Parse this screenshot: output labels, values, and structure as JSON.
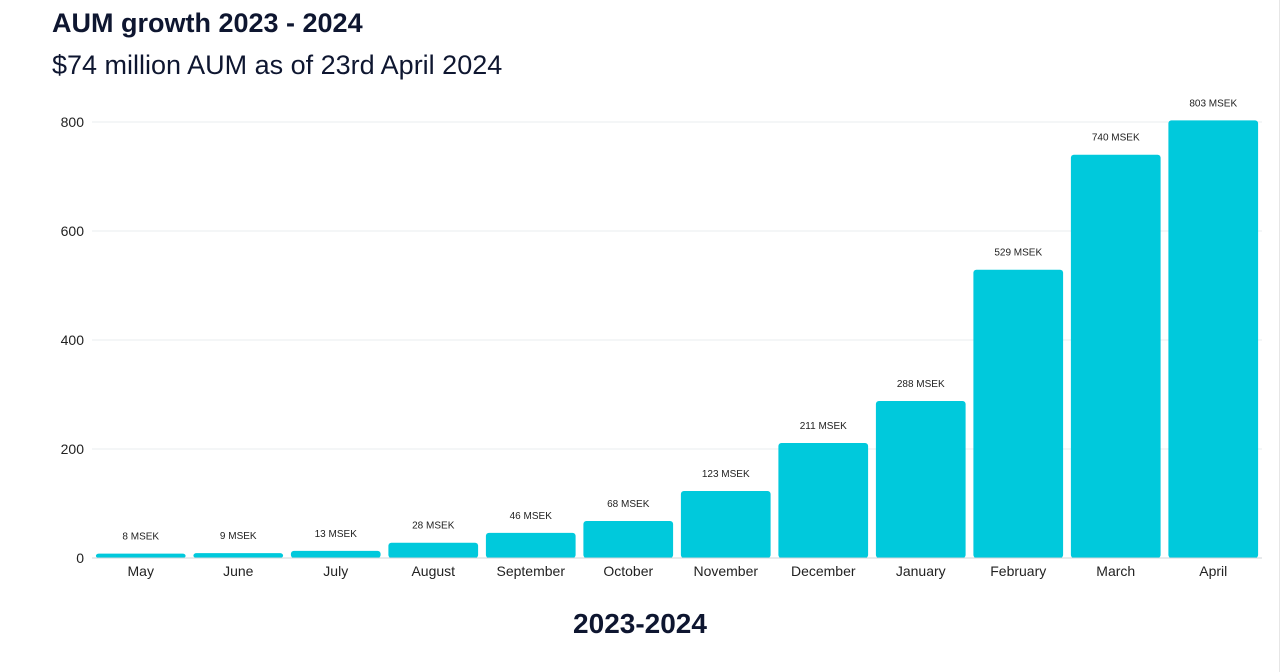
{
  "header": {
    "title": "AUM growth 2023 - 2024",
    "subtitle": "$74 million AUM as of 23rd April 2024"
  },
  "chart_data": {
    "type": "bar",
    "title": "AUM growth 2023 - 2024",
    "subtitle": "$74 million AUM as of 23rd April 2024",
    "xlabel": "2023-2024",
    "ylabel": "",
    "ylim": [
      0,
      800
    ],
    "yticks": [
      0,
      200,
      400,
      600,
      800
    ],
    "grid": true,
    "legend": "none",
    "bar_color": "#00c9dc",
    "categories": [
      "May",
      "June",
      "July",
      "August",
      "September",
      "October",
      "November",
      "December",
      "January",
      "February",
      "March",
      "April"
    ],
    "values": [
      8,
      9,
      13,
      28,
      46,
      68,
      123,
      211,
      288,
      529,
      740,
      803
    ],
    "data_labels": [
      "8 MSEK",
      "9 MSEK",
      "13 MSEK",
      "28 MSEK",
      "46 MSEK",
      "68 MSEK",
      "123 MSEK",
      "211 MSEK",
      "288 MSEK",
      "529 MSEK",
      "740 MSEK",
      "803 MSEK"
    ]
  }
}
